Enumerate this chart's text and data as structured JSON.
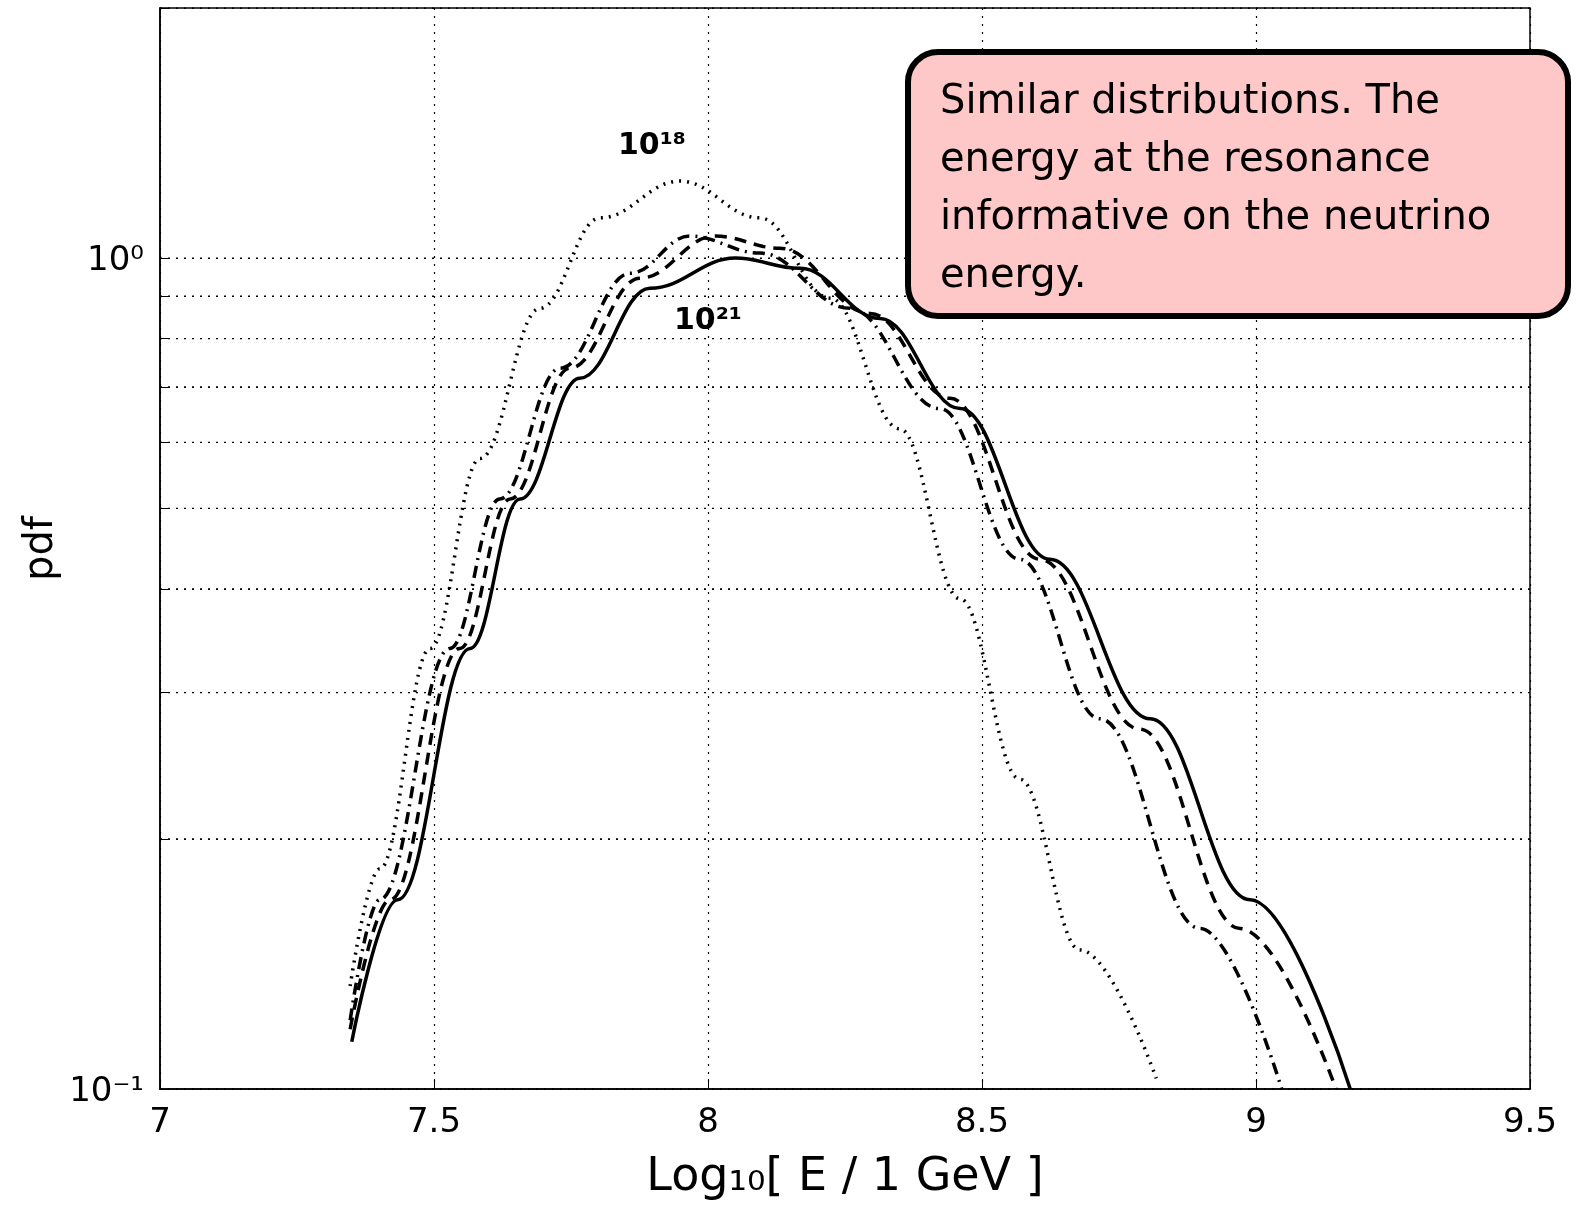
{
  "chart_data": {
    "type": "line",
    "xlabel": "Log₁₀[ E / 1 GeV ]",
    "ylabel": "pdf",
    "xlim": [
      7,
      9.5
    ],
    "xticks": [
      7,
      7.5,
      8,
      8.5,
      9,
      9.5
    ],
    "ylim": [
      0.1,
      2
    ],
    "yticks": [
      {
        "value": 0.1,
        "label": "10⁻¹"
      },
      {
        "value": 0.2,
        "label": null
      },
      {
        "value": 0.3,
        "label": null
      },
      {
        "value": 0.4,
        "label": null
      },
      {
        "value": 0.5,
        "label": null
      },
      {
        "value": 0.6,
        "label": null
      },
      {
        "value": 0.7,
        "label": null
      },
      {
        "value": 0.8,
        "label": null
      },
      {
        "value": 0.9,
        "label": null
      },
      {
        "value": 1,
        "label": "10⁰"
      },
      {
        "value": 2,
        "label": null
      }
    ],
    "log": "y",
    "grid": true,
    "marker": "none",
    "series": [
      {
        "color": "#000000",
        "line_style": "dotted",
        "x": [
          7.347,
          7.401,
          7.493,
          7.584,
          7.693,
          7.803,
          7.949,
          8.095,
          8.223,
          8.35,
          8.46,
          8.569,
          8.679,
          8.818
        ],
        "values": [
          0.133,
          0.184,
          0.339,
          0.574,
          0.87,
          1.118,
          1.238,
          1.118,
          0.895,
          0.623,
          0.389,
          0.236,
          0.147,
          0.103
        ]
      },
      {
        "color": "#000000",
        "line_style": "dashdot",
        "x": [
          7.347,
          7.401,
          7.529,
          7.62,
          7.73,
          7.858,
          7.967,
          8.095,
          8.259,
          8.423,
          8.569,
          8.715,
          8.898,
          9.047
        ],
        "values": [
          0.121,
          0.169,
          0.339,
          0.513,
          0.737,
          0.959,
          1.063,
          1.014,
          0.87,
          0.659,
          0.434,
          0.279,
          0.156,
          0.1
        ]
      },
      {
        "color": "#000000",
        "line_style": "dashed",
        "x": [
          7.347,
          7.42,
          7.547,
          7.639,
          7.748,
          7.876,
          8.013,
          8.131,
          8.296,
          8.442,
          8.606,
          8.788,
          8.971,
          9.146
        ],
        "values": [
          0.118,
          0.169,
          0.339,
          0.513,
          0.737,
          0.946,
          1.063,
          1.028,
          0.858,
          0.678,
          0.434,
          0.271,
          0.156,
          0.1
        ]
      },
      {
        "color": "#000000",
        "line_style": "solid",
        "x": [
          7.35,
          7.434,
          7.566,
          7.657,
          7.766,
          7.894,
          8.05,
          8.168,
          8.314,
          8.46,
          8.624,
          8.807,
          8.989,
          9.172
        ],
        "values": [
          0.114,
          0.169,
          0.339,
          0.513,
          0.717,
          0.92,
          1.0,
          0.972,
          0.846,
          0.659,
          0.434,
          0.279,
          0.169,
          0.1
        ]
      }
    ],
    "annotations": [
      "10¹⁸",
      "10²¹",
      "Similar distributions. The energy at the resonance informative on the neutrino energy."
    ]
  }
}
